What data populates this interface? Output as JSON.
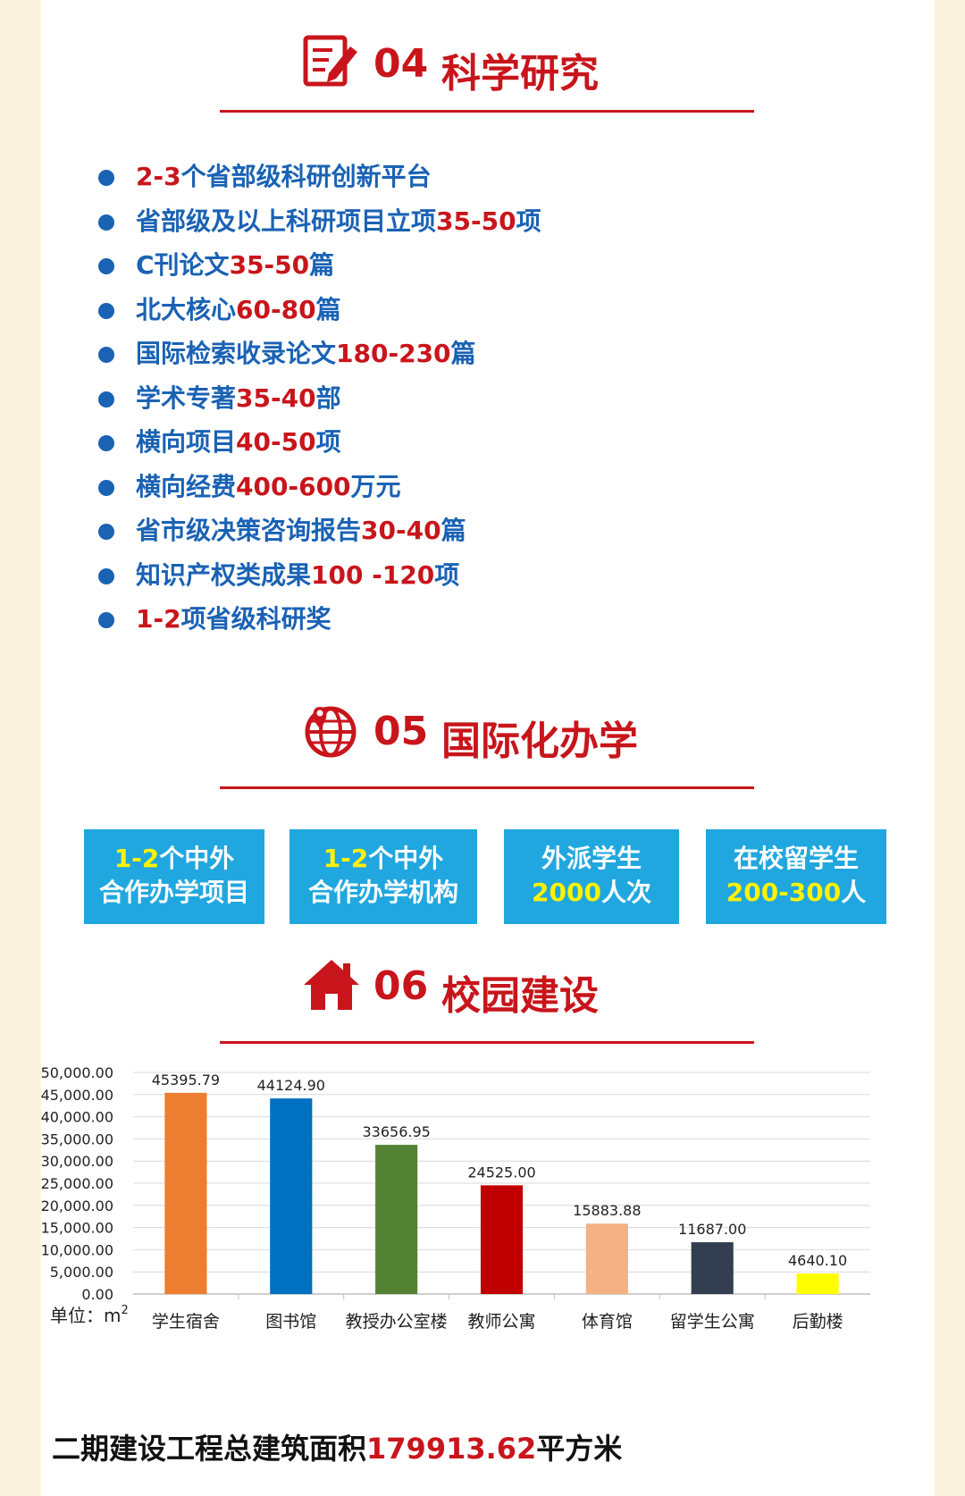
{
  "sections": {
    "research": {
      "num": "04",
      "title": "科学研究"
    },
    "intl": {
      "num": "05",
      "title": "国际化办学"
    },
    "campus": {
      "num": "06",
      "title": "校园建设"
    }
  },
  "research_items": [
    {
      "pre": "",
      "red": "2-3",
      "post": "个省部级科研创新平台"
    },
    {
      "pre": "省部级及以上科研项目立项",
      "red": "35-50",
      "post": "项"
    },
    {
      "pre": "C刊论文",
      "red": "35-50",
      "post": "篇"
    },
    {
      "pre": "北大核心",
      "red": "60-80",
      "post": "篇"
    },
    {
      "pre": "国际检索收录论文",
      "red": "180-230",
      "post": "篇"
    },
    {
      "pre": "学术专著",
      "red": "35-40",
      "post": "部"
    },
    {
      "pre": "横向项目",
      "red": "40-50",
      "post": "项"
    },
    {
      "pre": "横向经费",
      "red": "400-600",
      "post": "万元"
    },
    {
      "pre": "省市级决策咨询报告",
      "red": "30-40",
      "post": "篇"
    },
    {
      "pre": "知识产权类成果",
      "red": "100 -120",
      "post": "项"
    },
    {
      "pre": "",
      "red": "1-2",
      "post": "项省级科研奖"
    }
  ],
  "intl_boxes": [
    {
      "line1_yellow": "1-2",
      "line1": "个中外",
      "line2_yellow": "",
      "line2": "合作办学项目"
    },
    {
      "line1_yellow": "1-2",
      "line1": "个中外",
      "line2_yellow": "",
      "line2": "合作办学机构"
    },
    {
      "line1_yellow": "",
      "line1": "外派学生",
      "line2_yellow": "2000",
      "line2": "人次"
    },
    {
      "line1_yellow": "",
      "line1": "在校留学生",
      "line2_yellow": "200-300",
      "line2": "人"
    }
  ],
  "chart_data": {
    "type": "bar",
    "categories": [
      "学生宿舍",
      "图书馆",
      "教授办公室楼",
      "教师公寓",
      "体育馆",
      "留学生公寓",
      "后勤楼"
    ],
    "values": [
      45395.79,
      44124.9,
      33656.95,
      24525.0,
      15883.88,
      11687.0,
      4640.1
    ],
    "value_labels": [
      "45395.79",
      "44124.90",
      "33656.95",
      "24525.00",
      "15883.88",
      "11687.00",
      "4640.10"
    ],
    "colors": [
      "#ed7d31",
      "#0070c0",
      "#548235",
      "#c00000",
      "#f4b183",
      "#333f50",
      "#ffff00"
    ],
    "ylim": [
      0,
      50000
    ],
    "yticks": [
      "0.00",
      "5,000.00",
      "10,000.00",
      "15,000.00",
      "20,000.00",
      "25,000.00",
      "30,000.00",
      "35,000.00",
      "40,000.00",
      "45,000.00",
      "50,000.00"
    ],
    "unit": "单位：m",
    "unit_sup": "2",
    "grid": true
  },
  "summary": {
    "pre": "二期建设工程总建筑面积",
    "red": "179913.62",
    "post": "平方米"
  }
}
